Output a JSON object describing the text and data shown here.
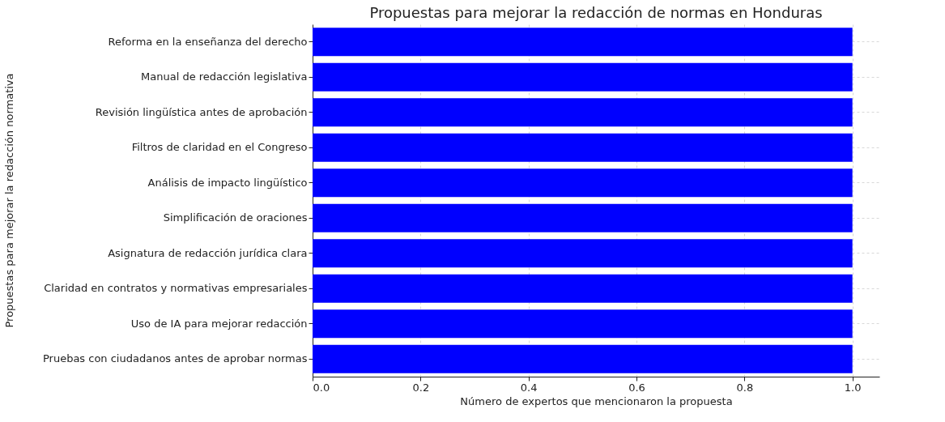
{
  "chart_data": {
    "type": "bar",
    "orientation": "horizontal",
    "title": "Propuestas para mejorar la redacción de normas en Honduras",
    "xlabel": "Número de expertos que mencionaron la propuesta",
    "ylabel": "Propuestas para mejorar la redacción normativa",
    "categories": [
      "Reforma en la enseñanza del derecho",
      "Manual de redacción legislativa",
      "Revisión lingüística antes de aprobación",
      "Filtros de claridad en el Congreso",
      "Análisis de impacto lingüístico",
      "Simplificación de oraciones",
      "Asignatura de redacción jurídica clara",
      "Claridad en contratos y normativas empresariales",
      "Uso de IA para mejorar redacción",
      "Pruebas con ciudadanos antes de aprobar normas"
    ],
    "values": [
      1,
      1,
      1,
      1,
      1,
      1,
      1,
      1,
      1,
      1
    ],
    "color": "#0000ff",
    "xlim": [
      0,
      1.05
    ],
    "xticks": [
      {
        "value": 0,
        "label": "0.0"
      },
      0.2,
      0.4,
      0.6,
      0.8,
      {
        "value": 1,
        "label": "1.0"
      }
    ],
    "grid": true
  }
}
